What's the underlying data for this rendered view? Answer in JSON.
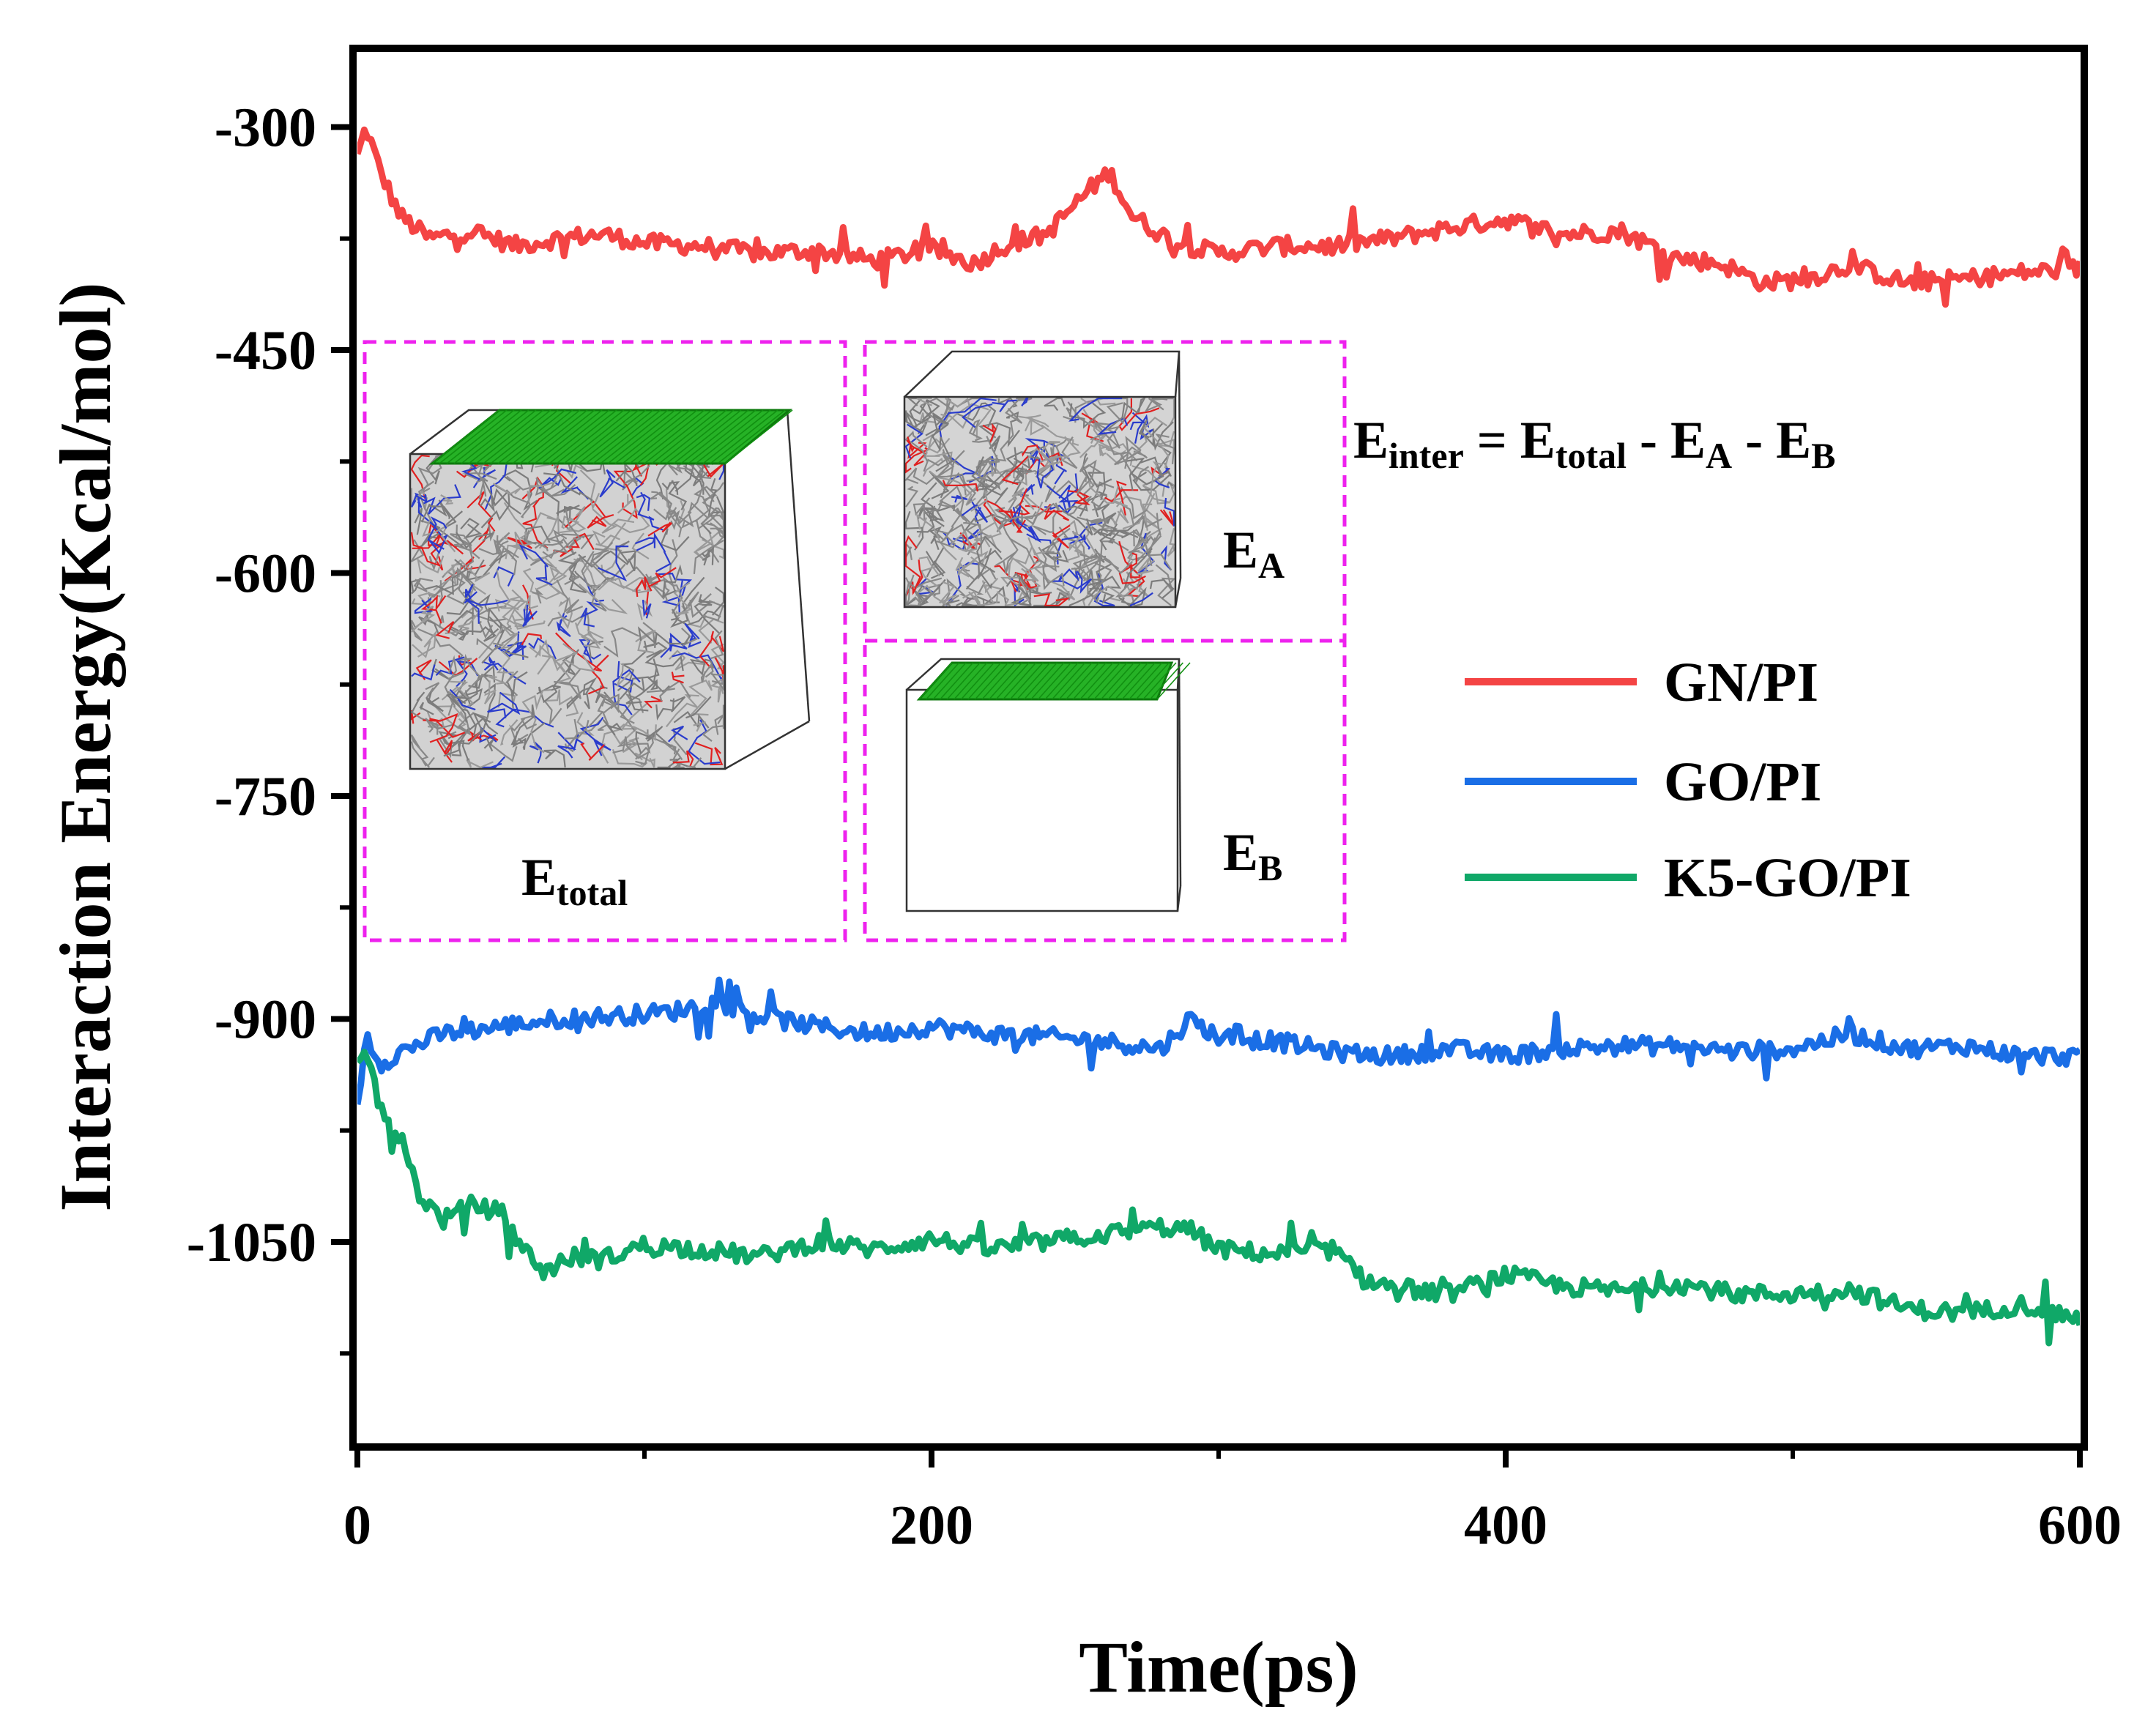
{
  "chart_data": {
    "type": "line",
    "xlabel": "Time(ps)",
    "ylabel": "Interaction Energy(Kcal/mol)",
    "xlim": [
      0,
      600
    ],
    "ylim": [
      -1185,
      -250
    ],
    "x_ticks": [
      {
        "value": 0,
        "label": "0"
      },
      {
        "value": 200,
        "label": "200"
      },
      {
        "value": 400,
        "label": "400"
      },
      {
        "value": 600,
        "label": "600"
      }
    ],
    "y_ticks": [
      {
        "value": -300,
        "label": "-300"
      },
      {
        "value": -450,
        "label": "-450"
      },
      {
        "value": -600,
        "label": "-600"
      },
      {
        "value": -750,
        "label": "-750"
      },
      {
        "value": -900,
        "label": "-900"
      },
      {
        "value": -1050,
        "label": "-1050"
      }
    ],
    "x_minor_ticks": [
      100,
      300,
      500
    ],
    "y_minor_ticks": [
      -375,
      -525,
      -675,
      -825,
      -975,
      -1125
    ],
    "grid": false,
    "legend_position": "right",
    "series": [
      {
        "name": "GN/PI",
        "color": "#f44444",
        "x": [
          0,
          3,
          8,
          15,
          25,
          40,
          55,
          70,
          85,
          100,
          120,
          140,
          160,
          180,
          200,
          215,
          225,
          240,
          255,
          262,
          270,
          285,
          300,
          320,
          340,
          360,
          380,
          400,
          420,
          440,
          460,
          475,
          490,
          505,
          520,
          540,
          560,
          580,
          600
        ],
        "y": [
          -320,
          -300,
          -330,
          -360,
          -375,
          -370,
          -380,
          -375,
          -372,
          -378,
          -380,
          -385,
          -383,
          -390,
          -382,
          -392,
          -380,
          -372,
          -342,
          -330,
          -360,
          -378,
          -385,
          -380,
          -380,
          -375,
          -368,
          -362,
          -372,
          -370,
          -388,
          -392,
          -405,
          -402,
          -393,
          -405,
          -402,
          -398,
          -395
        ]
      },
      {
        "name": "GO/PI",
        "color": "#1a6ee6",
        "x": [
          0,
          3,
          8,
          15,
          30,
          50,
          70,
          90,
          110,
          125,
          140,
          160,
          180,
          200,
          220,
          240,
          260,
          280,
          290,
          300,
          320,
          340,
          360,
          380,
          400,
          420,
          440,
          460,
          480,
          500,
          520,
          540,
          560,
          580,
          600
        ],
        "y": [
          -960,
          -910,
          -930,
          -922,
          -910,
          -905,
          -900,
          -898,
          -895,
          -888,
          -898,
          -905,
          -910,
          -905,
          -910,
          -912,
          -915,
          -920,
          -900,
          -912,
          -915,
          -922,
          -925,
          -920,
          -925,
          -920,
          -918,
          -918,
          -922,
          -920,
          -910,
          -920,
          -918,
          -925,
          -925
        ]
      },
      {
        "name": "K5-GO/PI",
        "color": "#10a868",
        "x": [
          0,
          3,
          8,
          15,
          22,
          30,
          40,
          50,
          58,
          65,
          75,
          85,
          100,
          120,
          140,
          160,
          180,
          200,
          220,
          240,
          260,
          280,
          290,
          300,
          320,
          340,
          350,
          360,
          380,
          400,
          420,
          440,
          460,
          480,
          500,
          520,
          540,
          560,
          580,
          600
        ],
        "y": [
          -935,
          -920,
          -960,
          -980,
          -1020,
          -1035,
          -1025,
          -1030,
          -1055,
          -1070,
          -1060,
          -1062,
          -1052,
          -1055,
          -1060,
          -1050,
          -1055,
          -1048,
          -1055,
          -1050,
          -1045,
          -1040,
          -1042,
          -1055,
          -1058,
          -1055,
          -1075,
          -1080,
          -1085,
          -1072,
          -1080,
          -1083,
          -1078,
          -1085,
          -1085,
          -1082,
          -1095,
          -1098,
          -1092,
          -1102
        ]
      }
    ],
    "legend": [
      {
        "label": "GN/PI",
        "color": "#f44444"
      },
      {
        "label": "GO/PI",
        "color": "#1a6ee6"
      },
      {
        "label": "K5-GO/PI",
        "color": "#10a868"
      }
    ],
    "annotations": {
      "formula": {
        "E": "E",
        "inter": "inter",
        "eq": " = ",
        "E2": "E",
        "total": "total",
        "m1": " - ",
        "E3": "E",
        "A": "A",
        "m2": " - ",
        "E4": "E",
        "B": "B"
      },
      "inset_total": {
        "E": "E",
        "sub": "total"
      },
      "inset_A": {
        "E": "E",
        "sub": "A"
      },
      "inset_B": {
        "E": "E",
        "sub": "B"
      },
      "inset_border_color": "#ee22ee",
      "graphene_color": "#22b022"
    }
  }
}
